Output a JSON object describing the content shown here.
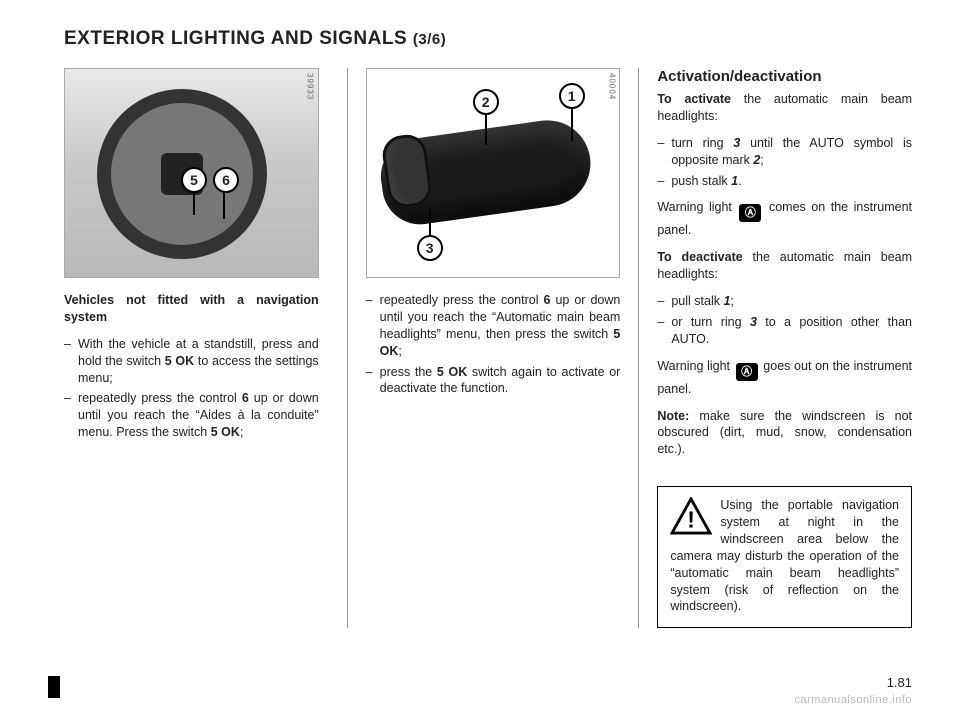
{
  "title_main": "EXTERIOR LIGHTING AND SIGNALS",
  "title_sub": "(3/6)",
  "page_number": "1.81",
  "watermark": "carmanualsonline.info",
  "figures": {
    "fig1": {
      "code": "39933",
      "callouts": {
        "c5": "5",
        "c6": "6"
      }
    },
    "fig2": {
      "code": "40004",
      "callouts": {
        "c1": "1",
        "c2": "2",
        "c3": "3"
      }
    }
  },
  "col1": {
    "lead": "Vehicles not fitted with a navigation system",
    "items": [
      "With the vehicle at a standstill, press and hold the switch <b>5</b> <b>OK</b> to access the settings menu;",
      "repeatedly press the control <b>6</b> up or down until you reach the “Aides à la conduite” menu. Press the switch <b>5</b> <b>OK</b>;"
    ]
  },
  "col2": {
    "items": [
      "repeatedly press the control <b>6</b> up or down until you reach the “Automatic main beam headlights” menu, then press the switch <b>5 OK</b>;",
      "press the <b>5 OK</b> switch again to activate or deactivate the function."
    ]
  },
  "col3": {
    "h_act": "Activation/deactivation",
    "p_act_lead": "<b>To activate</b> the automatic main beam headlights:",
    "act_items": [
      "turn ring <b><i>3</i></b> until the AUTO symbol is opposite mark <b><i>2</i></b>;",
      "push stalk <b><i>1</i></b>."
    ],
    "p_warn_on": "Warning light <span class=\"warn-icon\">Ⓐ</span> comes on the instrument panel.",
    "p_deact_lead": "<b>To deactivate</b> the automatic main beam headlights:",
    "deact_items": [
      "pull stalk <b><i>1</i></b>;",
      "or turn ring <b><i>3</i></b> to a position other than AUTO."
    ],
    "p_warn_off": "Warning light <span class=\"warn-icon\">Ⓐ</span> goes out on the instrument panel.",
    "p_note": "<b>Note:</b> make sure the windscreen is not obscured (dirt, mud, snow, condensation etc.).",
    "warning_box": "Using the portable navigation system at night in the windscreen area below the camera may disturb the operation of the “automatic main beam headlights” system (risk of reflection on the windscreen)."
  }
}
